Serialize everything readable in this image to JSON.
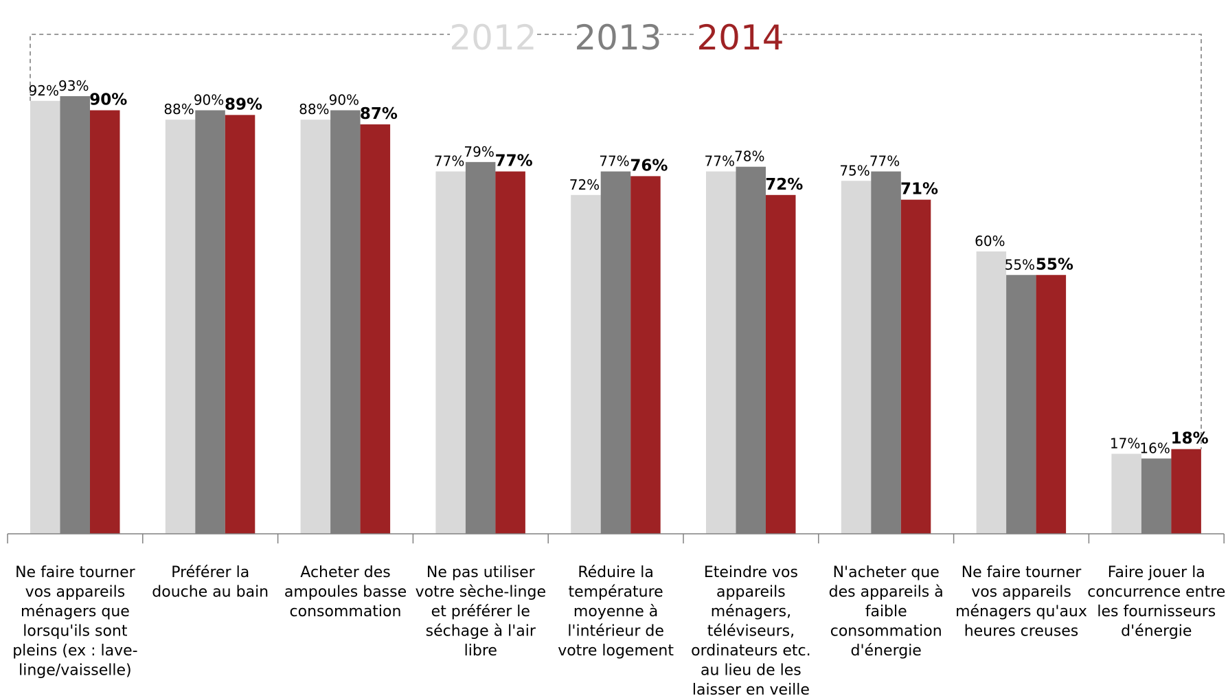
{
  "chart_data": {
    "type": "bar",
    "categories": [
      [
        "Ne faire tourner",
        "vos appareils",
        "ménagers que",
        "lorsqu'ils sont",
        "pleins (ex : lave-",
        "linge/vaisselle)"
      ],
      [
        "Préférer la",
        "douche au bain"
      ],
      [
        "Acheter des",
        "ampoules basse",
        "consommation"
      ],
      [
        "Ne pas utiliser",
        "votre sèche-linge",
        "et préférer le",
        "séchage à l'air",
        "libre"
      ],
      [
        "Réduire la",
        "température",
        "moyenne à",
        "l'intérieur  de",
        "votre logement"
      ],
      [
        "Eteindre vos",
        "appareils",
        "ménagers,",
        "téléviseurs,",
        "ordinateurs etc.",
        "au lieu de les",
        "laisser en veille"
      ],
      [
        "N'acheter que",
        "des appareils à",
        "faible",
        "consommation",
        "d'énergie"
      ],
      [
        "Ne faire tourner",
        "vos appareils",
        "ménagers qu'aux",
        "heures creuses"
      ],
      [
        "Faire jouer la",
        "concurrence entre",
        "les fournisseurs",
        "d'énergie"
      ]
    ],
    "series": [
      {
        "name": "2012",
        "color": "#d9d9d9",
        "values": [
          92,
          88,
          88,
          77,
          72,
          77,
          75,
          60,
          17
        ],
        "labels": [
          "92%",
          "88%",
          "88%",
          "77%",
          "72%",
          "77%",
          "75%",
          "60%",
          "17%"
        ]
      },
      {
        "name": "2013",
        "color": "#7f7f7f",
        "values": [
          93,
          90,
          90,
          79,
          77,
          78,
          77,
          55,
          16
        ],
        "labels": [
          "93%",
          "90%",
          "90%",
          "79%",
          "77%",
          "78%",
          "77%",
          "55%",
          "16%"
        ]
      },
      {
        "name": "2014",
        "color": "#9e2224",
        "values": [
          90,
          89,
          87,
          77,
          76,
          72,
          71,
          55,
          18
        ],
        "labels": [
          "90%",
          "89%",
          "87%",
          "77%",
          "76%",
          "72%",
          "71%",
          "55%",
          "18%"
        ]
      }
    ],
    "ylim": [
      0,
      100
    ],
    "legend_placement": "top-center",
    "grid": false,
    "title": "",
    "xlabel": "",
    "ylabel": ""
  }
}
